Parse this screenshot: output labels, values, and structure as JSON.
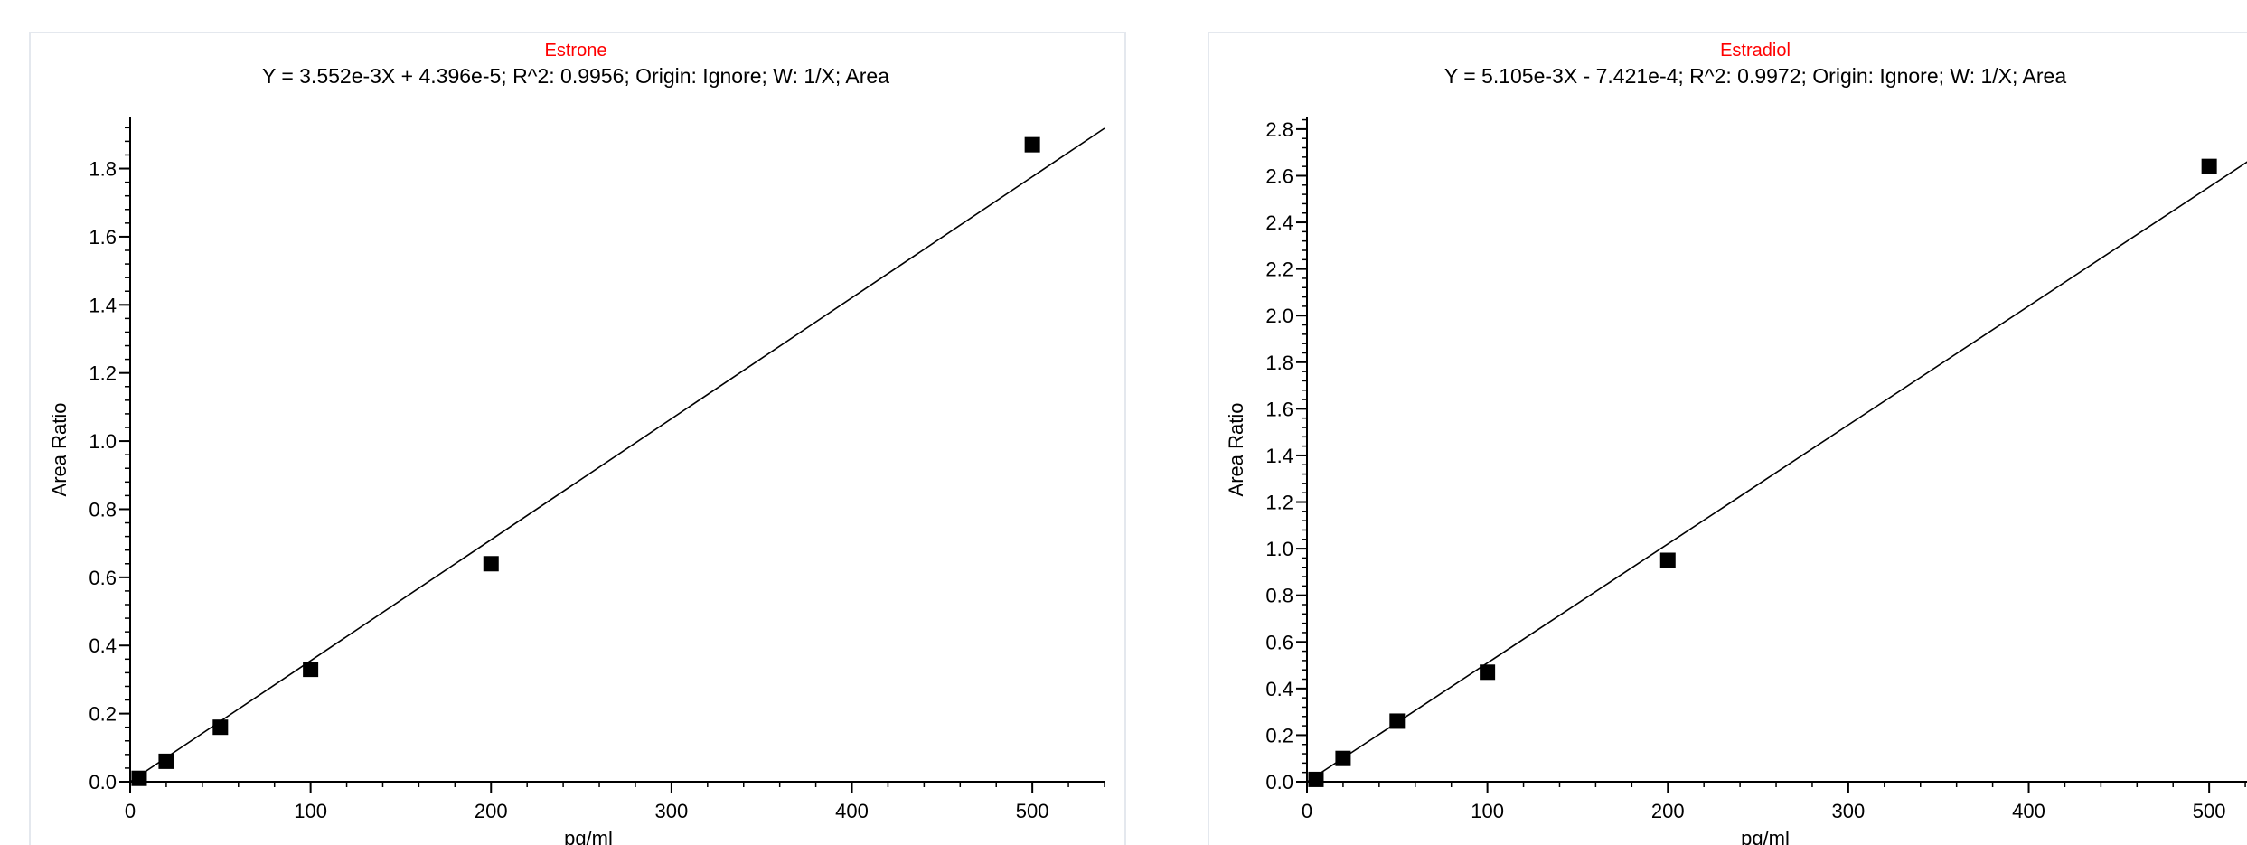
{
  "chart_data": [
    {
      "type": "scatter",
      "title": "Estrone",
      "subtitle": "Y = 3.552e-3X + 4.396e-5; R^2: 0.9956; Origin: Ignore; W: 1/X; Area",
      "xlabel": "pg/ml",
      "ylabel": "Area Ratio",
      "xlim": [
        0,
        540
      ],
      "ylim": [
        0,
        1.95
      ],
      "x_ticks": [
        0,
        100,
        200,
        300,
        400,
        500
      ],
      "x_tick_labels": [
        "0",
        "100",
        "200",
        "300",
        "400",
        "500"
      ],
      "y_ticks": [
        0,
        0.2,
        0.4,
        0.6,
        0.8,
        1.0,
        1.2,
        1.4,
        1.6,
        1.8
      ],
      "y_tick_labels": [
        "0.0",
        "0.2",
        "0.4",
        "0.6",
        "0.8",
        "1.0",
        "1.2",
        "1.4",
        "1.6",
        "1.8"
      ],
      "series": [
        {
          "points": [
            {
              "x": 5,
              "y": 0.01
            },
            {
              "x": 20,
              "y": 0.06
            },
            {
              "x": 50,
              "y": 0.16
            },
            {
              "x": 100,
              "y": 0.33
            },
            {
              "x": 200,
              "y": 0.64
            },
            {
              "x": 500,
              "y": 1.87
            }
          ]
        }
      ],
      "fit": {
        "slope": 0.003552,
        "intercept": 4.396e-05,
        "x_range": [
          0,
          540
        ]
      },
      "grid": false,
      "colors": {
        "title": "#ff0000",
        "marker": "#000000",
        "line": "#000000"
      }
    },
    {
      "type": "scatter",
      "title": "Estradiol",
      "subtitle": "Y = 5.105e-3X - 7.421e-4; R^2: 0.9972; Origin: Ignore; W: 1/X; Area",
      "xlabel": "pg/ml",
      "ylabel": "Area Ratio",
      "xlim": [
        0,
        540
      ],
      "ylim": [
        0,
        2.85
      ],
      "x_ticks": [
        0,
        100,
        200,
        300,
        400,
        500
      ],
      "x_tick_labels": [
        "0",
        "100",
        "200",
        "300",
        "400",
        "500"
      ],
      "y_ticks": [
        0,
        0.2,
        0.4,
        0.6,
        0.8,
        1.0,
        1.2,
        1.4,
        1.6,
        1.8,
        2.0,
        2.2,
        2.4,
        2.6,
        2.8
      ],
      "y_tick_labels": [
        "0.0",
        "0.2",
        "0.4",
        "0.6",
        "0.8",
        "1.0",
        "1.2",
        "1.4",
        "1.6",
        "1.8",
        "2.0",
        "2.2",
        "2.4",
        "2.6",
        "2.8"
      ],
      "series": [
        {
          "points": [
            {
              "x": 5,
              "y": 0.01
            },
            {
              "x": 20,
              "y": 0.1
            },
            {
              "x": 50,
              "y": 0.26
            },
            {
              "x": 100,
              "y": 0.47
            },
            {
              "x": 200,
              "y": 0.95
            },
            {
              "x": 500,
              "y": 2.64
            }
          ]
        }
      ],
      "fit": {
        "slope": 0.005105,
        "intercept": -0.0007421,
        "x_range": [
          0,
          540
        ]
      },
      "grid": false,
      "colors": {
        "title": "#ff0000",
        "marker": "#000000",
        "line": "#000000"
      }
    }
  ]
}
